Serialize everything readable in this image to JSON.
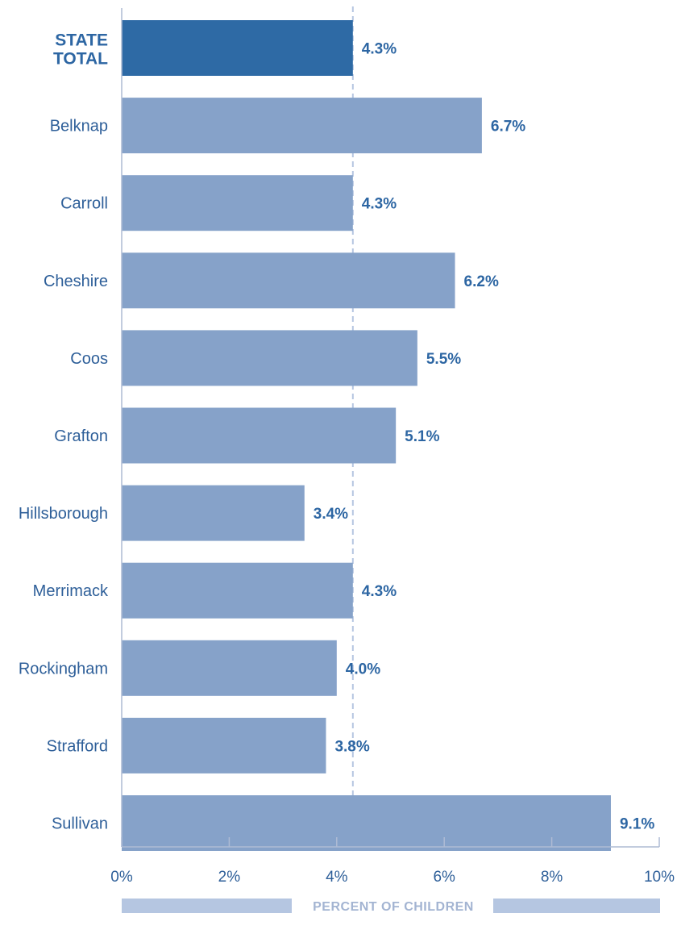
{
  "chart_data": {
    "type": "bar",
    "orientation": "horizontal",
    "categories": [
      "STATE TOTAL",
      "Belknap",
      "Carroll",
      "Cheshire",
      "Coos",
      "Grafton",
      "Hillsborough",
      "Merrimack",
      "Rockingham",
      "Strafford",
      "Sullivan"
    ],
    "values": [
      4.3,
      6.7,
      4.3,
      6.2,
      5.5,
      5.1,
      3.4,
      4.3,
      4.0,
      3.8,
      9.1
    ],
    "value_labels": [
      "4.3%",
      "6.7%",
      "4.3%",
      "6.2%",
      "5.5%",
      "5.1%",
      "3.4%",
      "4.3%",
      "4.0%",
      "3.8%",
      "9.1%"
    ],
    "reference_line": 4.3,
    "xlim": [
      0,
      10
    ],
    "x_ticks": [
      0,
      2,
      4,
      6,
      8,
      10
    ],
    "x_tick_labels": [
      "0%",
      "2%",
      "4%",
      "6%",
      "8%",
      "10%"
    ],
    "xlabel": "PERCENT OF CHILDREN",
    "ylabel": "",
    "title": "",
    "grid": false,
    "colors": {
      "total_bar": "#2e6aa5",
      "county_bar": "#86a2c9",
      "axis_title_bar": "#b5c6e1",
      "reference_line": "#b5c6e1",
      "text": "#2e5f99"
    }
  }
}
